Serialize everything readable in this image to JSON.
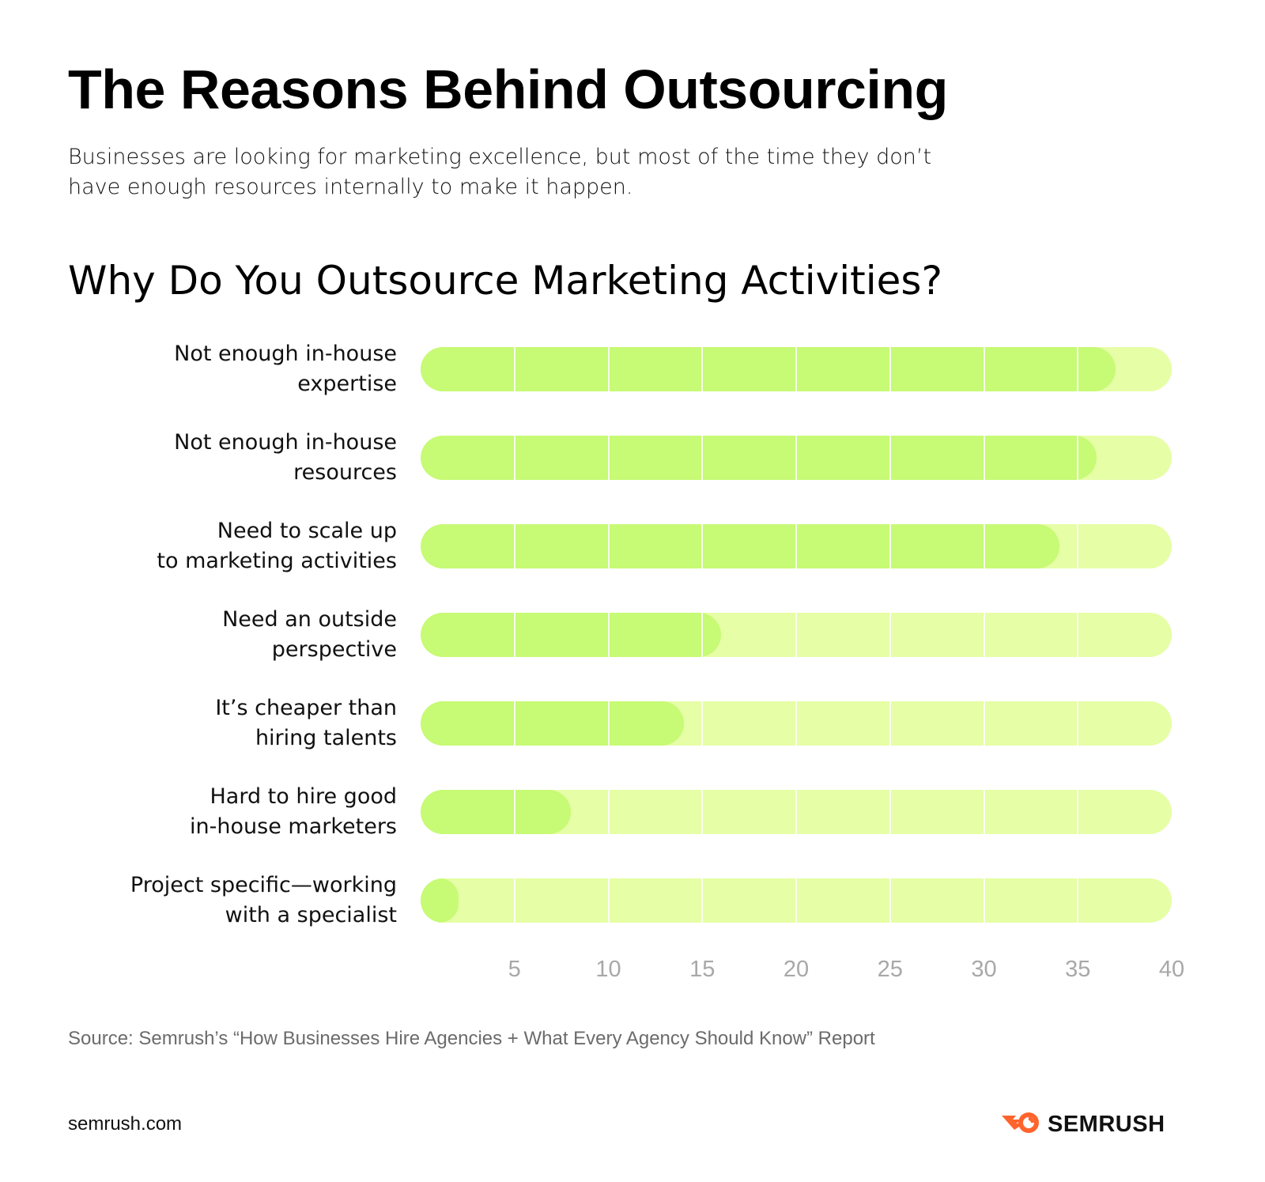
{
  "header": {
    "title": "The Reasons Behind Outsourcing",
    "subtitle": "Businesses are looking for marketing excellence, but most of the time they don’t have enough resources internally to make it happen."
  },
  "chart": {
    "title": "Why Do You Outsource Marketing Activities?"
  },
  "footer": {
    "source": "Source: Semrush’s “How Businesses Hire Agencies + What Every Agency Should Know” Report",
    "site": "semrush.com",
    "brand": "SEMRUSH"
  },
  "colors": {
    "bar_fill": "#c7fa75",
    "track_fill": "#e6fea6",
    "grid": "#ffffff",
    "tick_text": "#a8a8a8",
    "brand_orange": "#ff642d"
  },
  "chart_data": {
    "type": "bar",
    "orientation": "horizontal",
    "title": "Why Do You Outsource Marketing Activities?",
    "categories": [
      "Not enough in-house expertise",
      "Not enough in-house resources",
      "Need to scale up to marketing activities",
      "Need an outside perspective",
      "It’s cheaper than hiring talents",
      "Hard to hire good in-house marketers",
      "Project specific—working with a specialist"
    ],
    "values": [
      37,
      36,
      34,
      16,
      14,
      8,
      2
    ],
    "xlabel": "",
    "ylabel": "",
    "xlim": [
      0,
      40
    ],
    "xticks": [
      5,
      10,
      15,
      20,
      25,
      30,
      35,
      40
    ],
    "grid": true,
    "legend": "none"
  },
  "rows": [
    {
      "label": "Not enough in-house\nexpertise",
      "value": 37
    },
    {
      "label": "Not enough in-house\nresources",
      "value": 36
    },
    {
      "label": "Need to scale up\nto marketing activities",
      "value": 34
    },
    {
      "label": "Need an outside\nperspective",
      "value": 16
    },
    {
      "label": "It’s cheaper than\nhiring talents",
      "value": 14
    },
    {
      "label": "Hard to hire good\nin-house marketers",
      "value": 8
    },
    {
      "label": "Project specific—working\nwith a specialist",
      "value": 2
    }
  ],
  "ticks": [
    "5",
    "10",
    "15",
    "20",
    "25",
    "30",
    "35",
    "40"
  ]
}
